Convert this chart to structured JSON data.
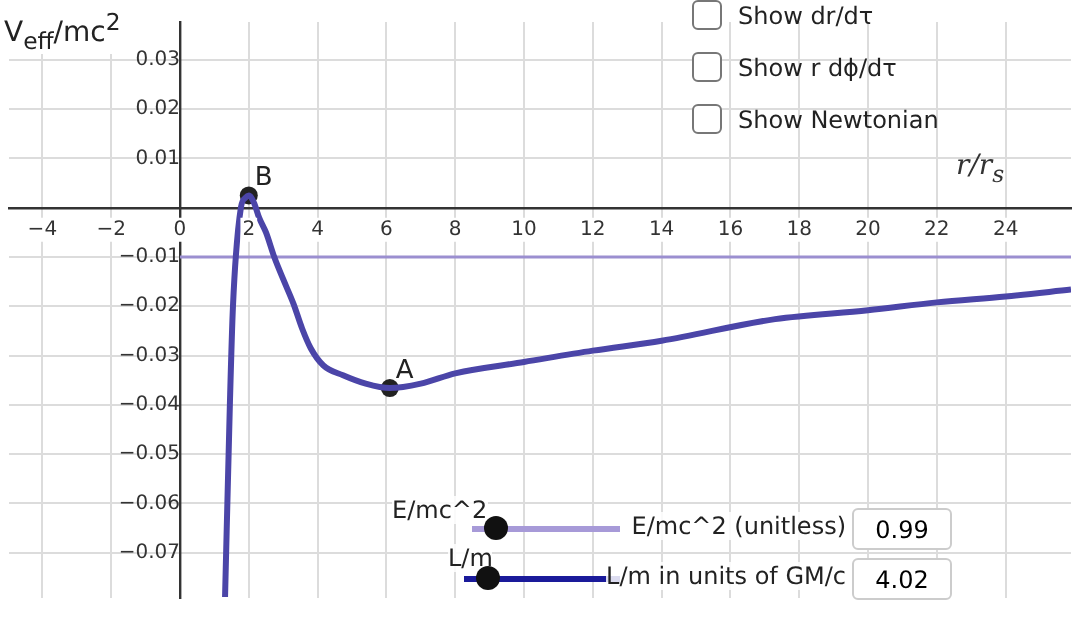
{
  "chart_data": {
    "type": "line",
    "xlabel": "r/r$_{s}$",
    "ylabel": "V$_{eff}$/mc$^{2}$",
    "x": [
      1.31,
      1.45,
      1.54,
      1.77,
      1.9,
      2.0,
      2.15,
      2.3,
      2.5,
      2.74,
      3.0,
      3.3,
      3.55,
      3.8,
      4.17,
      4.74,
      5.4,
      6.1,
      7.0,
      8.0,
      10.0,
      12.0,
      14.0,
      17.3,
      20.0,
      22.0,
      24.0,
      25.9
    ],
    "series": [
      {
        "type": "line",
        "color": "#4b45a8",
        "marker": "none",
        "values": [
          -0.079,
          -0.04,
          -0.02,
          0,
          0.002,
          0.0025,
          0.001,
          -0.002,
          -0.005,
          -0.01,
          -0.0145,
          -0.0195,
          -0.0245,
          -0.0285,
          -0.032,
          -0.034,
          -0.0357,
          -0.0366,
          -0.0357,
          -0.0336,
          -0.0313,
          -0.029,
          -0.027,
          -0.0226,
          -0.0208,
          -0.0192,
          -0.018,
          -0.0166
        ]
      },
      {
        "type": "scatter",
        "color": "#222222",
        "marker": "circle",
        "x": [
          6.1,
          2.0
        ],
        "values": [
          -0.0366,
          0.0025
        ]
      }
    ],
    "xlim": [
      -4.97,
      25.9
    ],
    "ylim": [
      -0.0792,
      0.0377
    ],
    "xticks": [
      -4,
      -2,
      0,
      2,
      4,
      6,
      8,
      10,
      12,
      14,
      16,
      18,
      20,
      22,
      24
    ],
    "yticks": [
      -0.07,
      -0.06,
      -0.05,
      -0.04,
      -0.03,
      -0.02,
      -0.01,
      {
        "value": 0,
        "label": null
      },
      0.01,
      0.02,
      0.03
    ],
    "grid": true,
    "legend": false,
    "ref_lines": [
      {
        "axis": "y",
        "value": -0.01,
        "color": "#9b8fd0"
      }
    ],
    "annotations": [
      {
        "text": "A",
        "x": 6.1,
        "y": -0.0366
      },
      {
        "text": "B",
        "x": 2.0,
        "y": 0.0025
      },
      "Show dr/dτ",
      "Show r dϕ/dτ",
      "Show Newtonian",
      "E/mc^2",
      "E/mc^2 (unitless)",
      "0.99",
      "L/m",
      "L/m in units of GM/c",
      "4.02"
    ]
  }
}
